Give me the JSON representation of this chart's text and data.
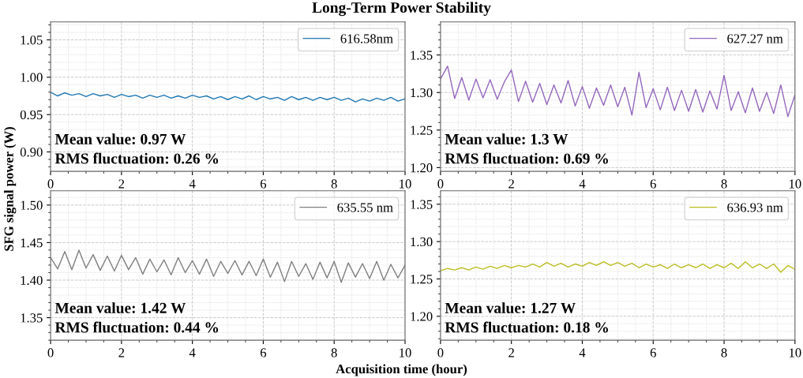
{
  "chart_data": [
    {
      "type": "line",
      "title": "Long-Term Power Stability",
      "xlabel": "Acquisition time (hour)",
      "ylabel": "SFG signal power (W)",
      "x": [
        0,
        0.2,
        0.4,
        0.6,
        0.8,
        1.0,
        1.2,
        1.4,
        1.6,
        1.8,
        2.0,
        2.2,
        2.4,
        2.6,
        2.8,
        3.0,
        3.2,
        3.4,
        3.6,
        3.8,
        4.0,
        4.2,
        4.4,
        4.6,
        4.8,
        5.0,
        5.2,
        5.4,
        5.6,
        5.8,
        6.0,
        6.2,
        6.4,
        6.6,
        6.8,
        7.0,
        7.2,
        7.4,
        7.6,
        7.8,
        8.0,
        8.2,
        8.4,
        8.6,
        8.8,
        9.0,
        9.2,
        9.4,
        9.6,
        9.8,
        10.0
      ],
      "series": [
        {
          "name": "616.58nm",
          "color": "#1f77b4",
          "values": [
            0.98,
            0.975,
            0.979,
            0.976,
            0.978,
            0.974,
            0.978,
            0.975,
            0.977,
            0.973,
            0.977,
            0.974,
            0.976,
            0.972,
            0.976,
            0.973,
            0.976,
            0.972,
            0.975,
            0.972,
            0.976,
            0.973,
            0.975,
            0.971,
            0.974,
            0.97,
            0.974,
            0.971,
            0.975,
            0.97,
            0.974,
            0.971,
            0.973,
            0.969,
            0.974,
            0.97,
            0.973,
            0.969,
            0.973,
            0.97,
            0.973,
            0.969,
            0.972,
            0.967,
            0.971,
            0.968,
            0.972,
            0.969,
            0.973,
            0.968,
            0.971
          ]
        }
      ],
      "xlim": [
        0,
        10
      ],
      "xticks": [
        0,
        2,
        4,
        6,
        8,
        10
      ],
      "ylim": [
        0.874,
        1.074
      ],
      "yticks": [
        {
          "value": 0.9,
          "label": "0.90"
        },
        0.95,
        {
          "value": 1.0,
          "label": "1.00"
        },
        1.05
      ],
      "annotations": [
        "Mean value: 0.97 W",
        "RMS fluctuation: 0.26 %"
      ],
      "grid": true,
      "legend": "top right"
    },
    {
      "type": "line",
      "x": [
        0,
        0.2,
        0.4,
        0.6,
        0.8,
        1.0,
        1.2,
        1.4,
        1.6,
        1.8,
        2.0,
        2.2,
        2.4,
        2.6,
        2.8,
        3.0,
        3.2,
        3.4,
        3.6,
        3.8,
        4.0,
        4.2,
        4.4,
        4.6,
        4.8,
        5.0,
        5.2,
        5.4,
        5.6,
        5.8,
        6.0,
        6.2,
        6.4,
        6.6,
        6.8,
        7.0,
        7.2,
        7.4,
        7.6,
        7.8,
        8.0,
        8.2,
        8.4,
        8.6,
        8.8,
        9.0,
        9.2,
        9.4,
        9.6,
        9.8,
        10.0
      ],
      "series": [
        {
          "name": "627.27 nm",
          "color": "#9467bd",
          "values": [
            1.318,
            1.335,
            1.292,
            1.32,
            1.29,
            1.318,
            1.293,
            1.317,
            1.291,
            1.314,
            1.33,
            1.288,
            1.315,
            1.287,
            1.312,
            1.284,
            1.31,
            1.286,
            1.316,
            1.282,
            1.308,
            1.279,
            1.306,
            1.283,
            1.31,
            1.281,
            1.307,
            1.27,
            1.327,
            1.28,
            1.305,
            1.277,
            1.307,
            1.276,
            1.303,
            1.275,
            1.304,
            1.274,
            1.302,
            1.278,
            1.323,
            1.276,
            1.301,
            1.273,
            1.306,
            1.275,
            1.3,
            1.272,
            1.31,
            1.268,
            1.297
          ]
        }
      ],
      "xlim": [
        0,
        10
      ],
      "xticks": [
        0,
        2,
        4,
        6,
        8,
        10
      ],
      "ylim": [
        1.195,
        1.394
      ],
      "yticks": [
        {
          "value": 1.2,
          "label": "1.20"
        },
        1.25,
        {
          "value": 1.3,
          "label": "1.30"
        },
        1.35
      ],
      "annotations": [
        "Mean value: 1.3 W",
        "RMS fluctuation: 0.69 %"
      ],
      "grid": true,
      "legend": "top right"
    },
    {
      "type": "line",
      "x": [
        0,
        0.2,
        0.4,
        0.6,
        0.8,
        1.0,
        1.2,
        1.4,
        1.6,
        1.8,
        2.0,
        2.2,
        2.4,
        2.6,
        2.8,
        3.0,
        3.2,
        3.4,
        3.6,
        3.8,
        4.0,
        4.2,
        4.4,
        4.6,
        4.8,
        5.0,
        5.2,
        5.4,
        5.6,
        5.8,
        6.0,
        6.2,
        6.4,
        6.6,
        6.8,
        7.0,
        7.2,
        7.4,
        7.6,
        7.8,
        8.0,
        8.2,
        8.4,
        8.6,
        8.8,
        9.0,
        9.2,
        9.4,
        9.6,
        9.8,
        10.0
      ],
      "series": [
        {
          "name": "635.55 nm",
          "color": "#7f7f7f",
          "values": [
            1.43,
            1.415,
            1.438,
            1.414,
            1.44,
            1.416,
            1.434,
            1.413,
            1.432,
            1.412,
            1.433,
            1.414,
            1.43,
            1.408,
            1.428,
            1.411,
            1.427,
            1.407,
            1.43,
            1.41,
            1.426,
            1.408,
            1.428,
            1.405,
            1.425,
            1.409,
            1.426,
            1.407,
            1.425,
            1.406,
            1.428,
            1.404,
            1.424,
            1.398,
            1.425,
            1.405,
            1.422,
            1.401,
            1.424,
            1.403,
            1.425,
            1.397,
            1.423,
            1.404,
            1.422,
            1.402,
            1.425,
            1.4,
            1.421,
            1.403,
            1.42
          ]
        }
      ],
      "xlim": [
        0,
        10
      ],
      "xticks": [
        0,
        2,
        4,
        6,
        8,
        10
      ],
      "ylim": [
        1.32,
        1.519
      ],
      "yticks": [
        1.35,
        {
          "value": 1.4,
          "label": "1.40"
        },
        1.45,
        {
          "value": 1.5,
          "label": "1.50"
        }
      ],
      "annotations": [
        "Mean value: 1.42 W",
        "RMS fluctuation: 0.44 %"
      ],
      "grid": true,
      "legend": "top right"
    },
    {
      "type": "line",
      "x": [
        0,
        0.2,
        0.4,
        0.6,
        0.8,
        1.0,
        1.2,
        1.4,
        1.6,
        1.8,
        2.0,
        2.2,
        2.4,
        2.6,
        2.8,
        3.0,
        3.2,
        3.4,
        3.6,
        3.8,
        4.0,
        4.2,
        4.4,
        4.6,
        4.8,
        5.0,
        5.2,
        5.4,
        5.6,
        5.8,
        6.0,
        6.2,
        6.4,
        6.6,
        6.8,
        7.0,
        7.2,
        7.4,
        7.6,
        7.8,
        8.0,
        8.2,
        8.4,
        8.6,
        8.8,
        9.0,
        9.2,
        9.4,
        9.6,
        9.8,
        10.0
      ],
      "series": [
        {
          "name": "636.93 nm",
          "color": "#bcbd22",
          "values": [
            1.261,
            1.264,
            1.262,
            1.265,
            1.262,
            1.266,
            1.263,
            1.267,
            1.264,
            1.268,
            1.265,
            1.268,
            1.266,
            1.27,
            1.266,
            1.272,
            1.267,
            1.271,
            1.266,
            1.27,
            1.267,
            1.272,
            1.268,
            1.273,
            1.268,
            1.272,
            1.267,
            1.271,
            1.265,
            1.27,
            1.266,
            1.269,
            1.264,
            1.27,
            1.265,
            1.269,
            1.265,
            1.27,
            1.264,
            1.269,
            1.265,
            1.271,
            1.264,
            1.273,
            1.265,
            1.27,
            1.264,
            1.27,
            1.259,
            1.268,
            1.263
          ]
        }
      ],
      "xlim": [
        0,
        10
      ],
      "xticks": [
        0,
        2,
        4,
        6,
        8,
        10
      ],
      "ylim": [
        1.168,
        1.368
      ],
      "yticks": [
        {
          "value": 1.2,
          "label": "1.20"
        },
        1.25,
        {
          "value": 1.3,
          "label": "1.30"
        },
        1.35
      ],
      "annotations": [
        "Mean value: 1.27 W",
        "RMS fluctuation: 0.18 %"
      ],
      "grid": true,
      "legend": "top right"
    }
  ]
}
